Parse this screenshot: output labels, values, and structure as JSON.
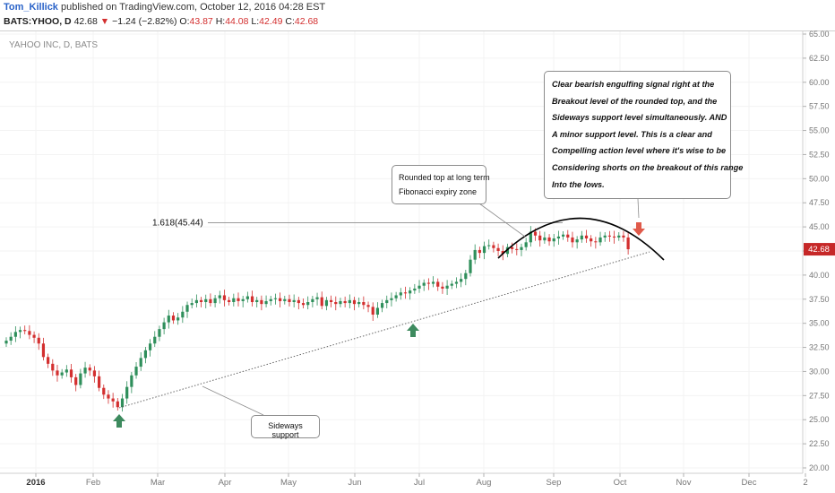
{
  "header": {
    "author": "Tom_Killick",
    "published": " published on TradingView.com, October 12, 2016 04:28 EST",
    "symbol": "BATS:YHOO, D",
    "last": "42.68",
    "change": "−1.24 (−2.82%)",
    "o_label": "O:",
    "o": "43.87",
    "h_label": "H:",
    "h": "44.08",
    "l_label": "L:",
    "l": "42.49",
    "c_label": "C:",
    "c": "42.68"
  },
  "chart_title": "YAHOO INC, D, BATS",
  "price_badge": "42.68",
  "fib_label": "1.618(45.44)",
  "annotations": {
    "big": [
      "Clear bearish engulfing signal right at the",
      "Breakout level of the rounded top, and the",
      "Sideways support level simultaneously. AND",
      "A minor support level. This is a clear and",
      "Compelling action level where it's wise to be",
      "Considering shorts on the breakout of this range",
      "Into the lows."
    ],
    "mid": [
      "Rounded top at long term",
      "Fibonacci expiry zone"
    ],
    "small": "Sideways support"
  },
  "colors": {
    "up": "#2f8f5b",
    "down": "#d32f2f",
    "arrow_up": "#3d8a5e",
    "arrow_down": "#e05a4a",
    "badge": "#c62828"
  },
  "chart_data": {
    "type": "candlestick",
    "y_ticks": [
      "65.00",
      "62.50",
      "60.00",
      "57.50",
      "55.00",
      "52.50",
      "50.00",
      "47.50",
      "45.00",
      "42.50",
      "40.00",
      "37.50",
      "35.00",
      "32.50",
      "30.00",
      "27.50",
      "25.00",
      "22.50",
      "20.00"
    ],
    "ylim": [
      20,
      65
    ],
    "x_ticks": [
      "2016",
      "Feb",
      "Mar",
      "Apr",
      "May",
      "Jun",
      "Jul",
      "Aug",
      "Sep",
      "Oct",
      "Nov",
      "Dec",
      "2"
    ],
    "series": [
      {
        "values": [
          33.2,
          33.6,
          34.1,
          34.3,
          34.2,
          33.8,
          33.5,
          32.9,
          31.5,
          30.8,
          30.1,
          29.6,
          29.9,
          30.2,
          29.4,
          28.6,
          29.8,
          30.4,
          30.1,
          29.5,
          28.3,
          27.6,
          27.2,
          26.9,
          26.3,
          27.2,
          28.4,
          29.6,
          30.5,
          31.4,
          32.2,
          32.9,
          33.6,
          34.4,
          35.1,
          35.8,
          35.3,
          35.6,
          36.2,
          36.9,
          37.1,
          37.4,
          37.2,
          37.5,
          37.1,
          37.6,
          37.9,
          37.4,
          37.2,
          37.6,
          37.3,
          37.5,
          37.8,
          37.2,
          37.4,
          37.0,
          37.3,
          37.5,
          37.6,
          37.3,
          37.5,
          37.2,
          37.4,
          37.1,
          36.9,
          37.2,
          37.5,
          37.7,
          36.8,
          37.4,
          37.2,
          37.0,
          37.3,
          37.1,
          37.4,
          37.0,
          37.2,
          36.9,
          36.7,
          35.9,
          36.6,
          37.1,
          37.4,
          37.6,
          37.9,
          38.2,
          38.1,
          38.4,
          38.6,
          38.9,
          39.2,
          39.1,
          39.3,
          38.8,
          38.6,
          38.9,
          39.1,
          39.3,
          39.6,
          40.2,
          41.6,
          42.6,
          42.3,
          43.0,
          43.1,
          42.8,
          42.5,
          42.2,
          42.9,
          42.7,
          42.6,
          42.9,
          43.4,
          44.5,
          44.1,
          43.6,
          43.9,
          43.5,
          43.8,
          44.0,
          44.2,
          43.9,
          43.4,
          43.7,
          44.1,
          43.8,
          43.5,
          43.4,
          43.9,
          44.1,
          44.0,
          43.9,
          44.1,
          43.9,
          42.68
        ]
      }
    ],
    "annotations": [
      {
        "text": "1.618(45.44)",
        "y": 45.44
      }
    ]
  }
}
